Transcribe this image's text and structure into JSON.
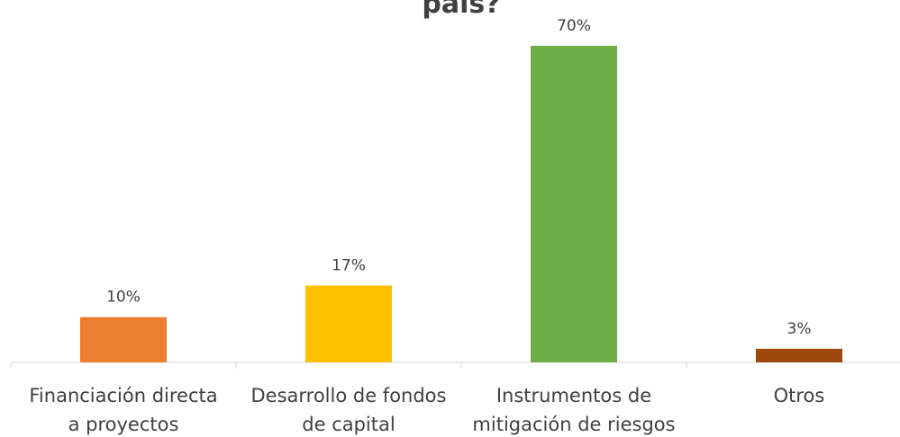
{
  "chart_data": {
    "type": "bar",
    "title": "país?",
    "categories": [
      "Financiación directa\na proyectos",
      "Desarrollo de fondos\nde capital",
      "Instrumentos de\nmitigación de riesgos",
      "Otros"
    ],
    "values": [
      10,
      17,
      70,
      3
    ],
    "value_labels": [
      "10%",
      "17%",
      "70%",
      "3%"
    ],
    "colors": [
      "#ed7d31",
      "#ffc000",
      "#70ad47",
      "#9e480e"
    ]
  }
}
